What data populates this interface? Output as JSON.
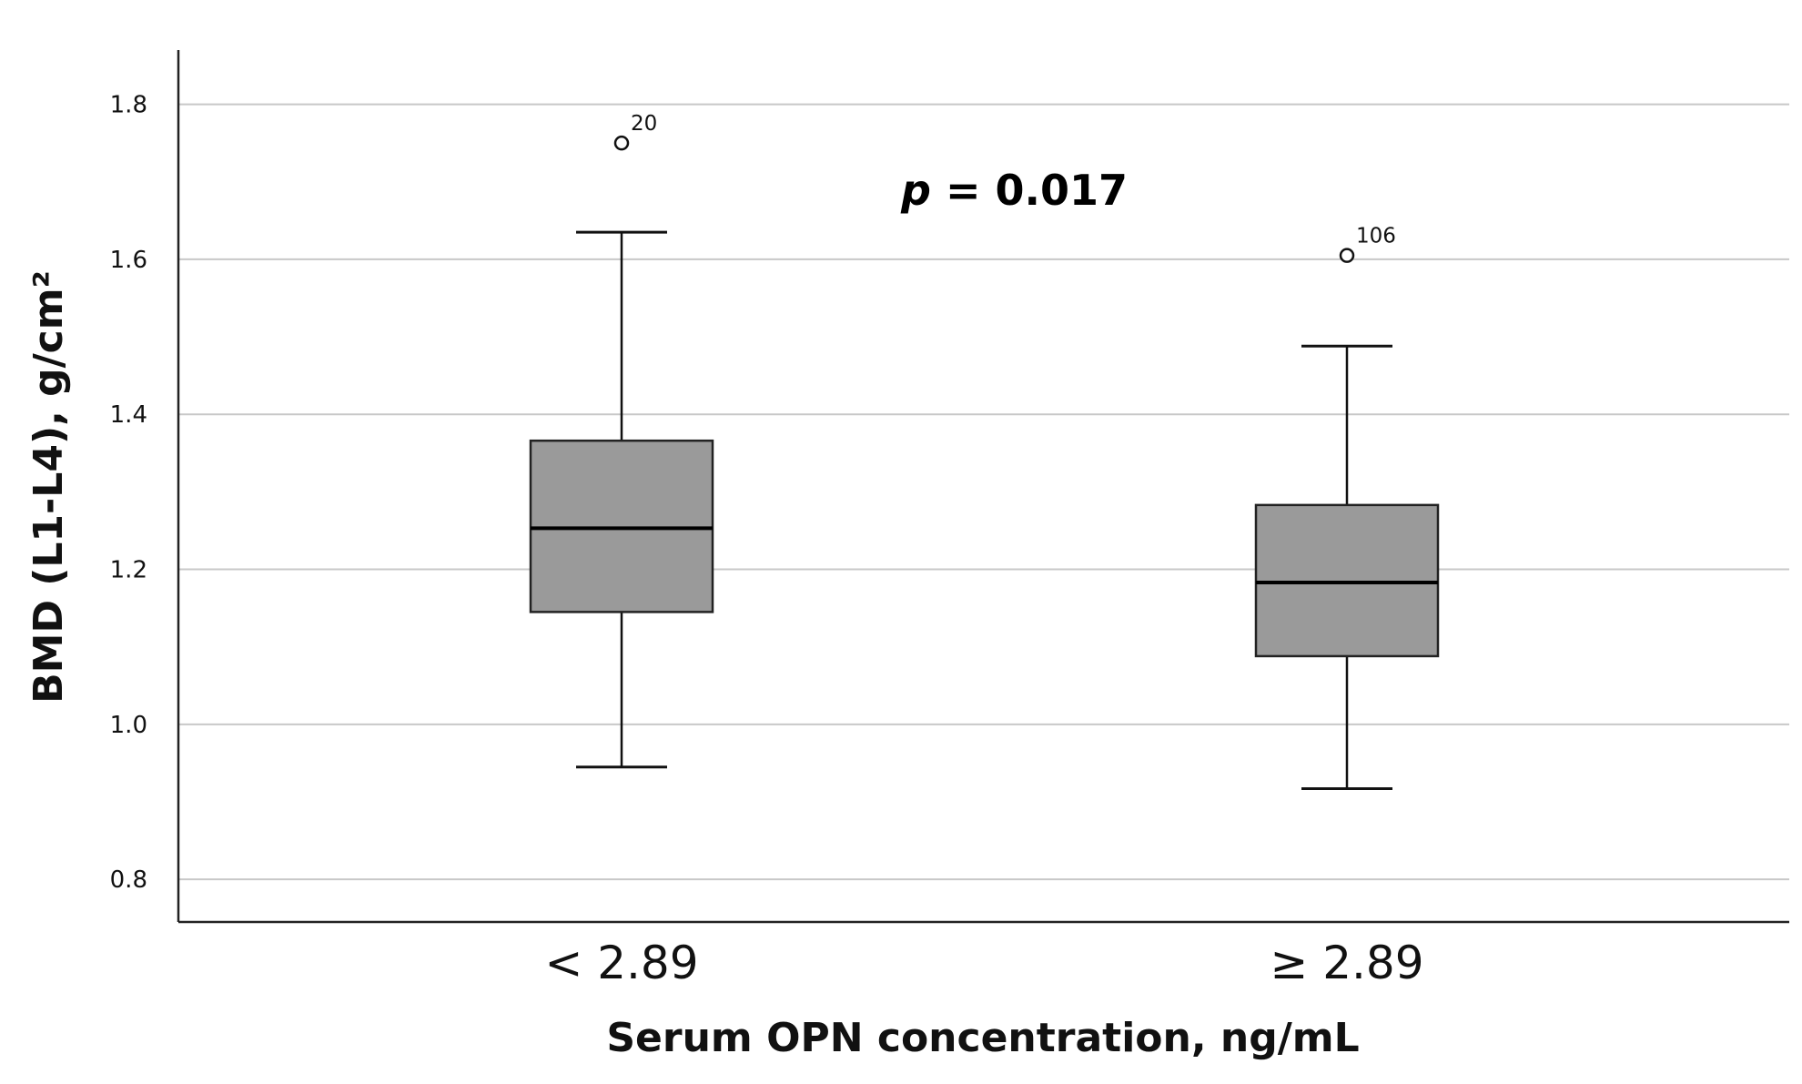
{
  "chart_data": {
    "type": "boxplot",
    "xlabel": "Serum OPN concentration, ng/mL",
    "ylabel": "BMD (L1-L4), g/cm²",
    "ylim": [
      0.745,
      1.87
    ],
    "yticks": [
      "0.8",
      "1.0",
      "1.2",
      "1.4",
      "1.6",
      "1.8"
    ],
    "grid": "horizontal",
    "annotation": {
      "italic": "p",
      "text": " = 0.017"
    },
    "box_color": "#9a9a9a",
    "groups": [
      {
        "category": "< 2.89",
        "whisker_low": 0.945,
        "q1": 1.145,
        "median": 1.253,
        "q3": 1.366,
        "whisker_high": 1.635,
        "outliers": [
          {
            "value": 1.75,
            "label": "20"
          }
        ]
      },
      {
        "category": "≥ 2.89",
        "whisker_low": 0.917,
        "q1": 1.088,
        "median": 1.183,
        "q3": 1.283,
        "whisker_high": 1.488,
        "outliers": [
          {
            "value": 1.605,
            "label": "106"
          }
        ]
      }
    ]
  }
}
